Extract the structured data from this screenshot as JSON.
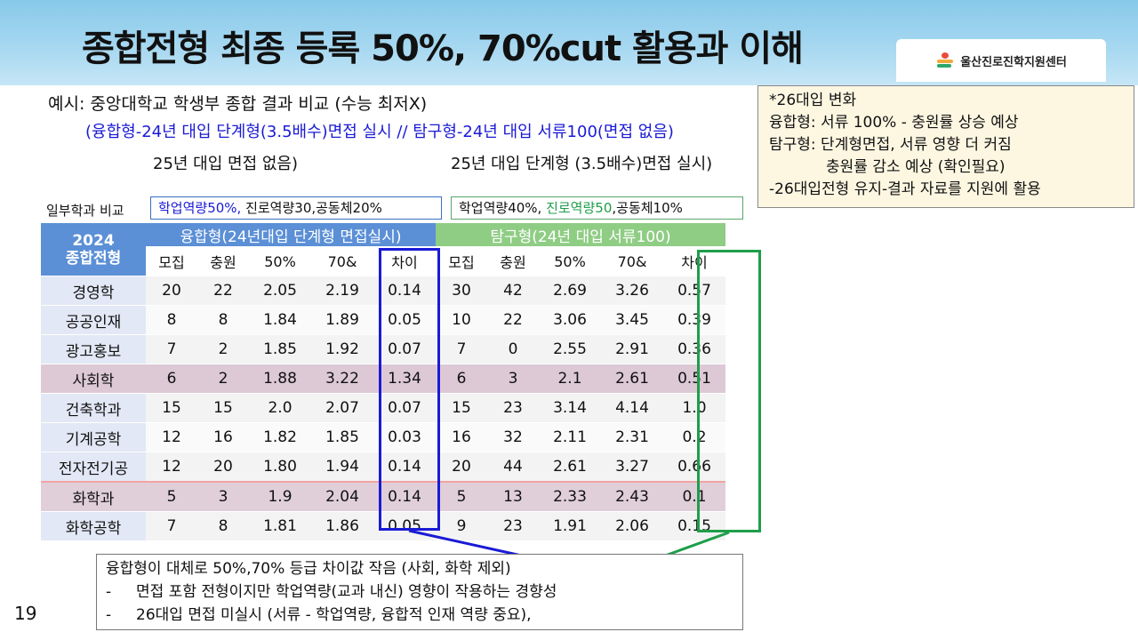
{
  "title": "종합전형 최종 등록 50%, 70%cut 활용과 이해",
  "logo": {
    "text": "울산진로진학지원센터"
  },
  "example": "예시: 중앙대학교 학생부 종합  결과 비교 (수능 최저X)",
  "subline": "(융합형-24년 대입 단계형(3.5배수)면접 실시 // 탐구형-24년 대입 서류100(면접 없음)",
  "note_left": "25년 대입 면접 없음)",
  "note_right": "25년 대입 단계형 (3.5배수)면접 실시)",
  "infobox": {
    "line1": "*26대입 변화",
    "line2": "융합형: 서류 100% - 충원률 상승 예상",
    "line3": "탐구형: 단계형면접, 서류 영향 더 커짐",
    "line4": "충원률 감소 예상 (확인필요)",
    "line5": "-26대입전형 유지-결과 자료를 지원에 활용"
  },
  "compare_label": "일부학과 비교",
  "box_a": {
    "accent": "학업역량50%,",
    "rest": " 진로역량30,공동체20%"
  },
  "box_b": {
    "lead": "학업역량40%, ",
    "accent": "진로역량50",
    "rest": ",공동체10%"
  },
  "table": {
    "corner_line1": "2024",
    "corner_line2": "종합전형",
    "group_a": "융합형(24년대입 단계형 면접실시)",
    "group_b": "탐구형(24년 대입 서류100)",
    "columns": [
      "모집",
      "충원",
      "50%",
      "70&",
      "차이",
      "모집",
      "충원",
      "50%",
      "70&",
      "차이"
    ],
    "rows": [
      {
        "dept": "경영학",
        "a": [
          "20",
          "22",
          "2.05",
          "2.19",
          "0.14"
        ],
        "b": [
          "30",
          "42",
          "2.69",
          "3.26",
          "0.57"
        ]
      },
      {
        "dept": "공공인재",
        "a": [
          "8",
          "8",
          "1.84",
          "1.89",
          "0.05"
        ],
        "b": [
          "10",
          "22",
          "3.06",
          "3.45",
          "0.39"
        ]
      },
      {
        "dept": "광고홍보",
        "a": [
          "7",
          "2",
          "1.85",
          "1.92",
          "0.07"
        ],
        "b": [
          "7",
          "0",
          "2.55",
          "2.91",
          "0.36"
        ]
      },
      {
        "dept": "사회학",
        "a": [
          "6",
          "2",
          "1.88",
          "3.22",
          "1.34"
        ],
        "b": [
          "6",
          "3",
          "2.1",
          "2.61",
          "0.51"
        ]
      },
      {
        "dept": "건축학과",
        "a": [
          "15",
          "15",
          "2.0",
          "2.07",
          "0.07"
        ],
        "b": [
          "15",
          "23",
          "3.14",
          "4.14",
          "1.0"
        ]
      },
      {
        "dept": "기계공학",
        "a": [
          "12",
          "16",
          "1.82",
          "1.85",
          "0.03"
        ],
        "b": [
          "16",
          "32",
          "2.11",
          "2.31",
          "0.2"
        ]
      },
      {
        "dept": "전자전기공",
        "a": [
          "12",
          "20",
          "1.80",
          "1.94",
          "0.14"
        ],
        "b": [
          "20",
          "44",
          "2.61",
          "3.27",
          "0.66"
        ]
      },
      {
        "dept": "화학과",
        "a": [
          "5",
          "3",
          "1.9",
          "2.04",
          "0.14"
        ],
        "b": [
          "5",
          "13",
          "2.33",
          "2.43",
          "0.1"
        ]
      },
      {
        "dept": "화학공학",
        "a": [
          "7",
          "8",
          "1.81",
          "1.86",
          "0.05"
        ],
        "b": [
          "9",
          "23",
          "1.91",
          "2.06",
          "0.15"
        ]
      }
    ]
  },
  "summary": {
    "line1": "융합형이 대체로 50%,70% 등급 차이값 작음 (사회, 화학 제외)",
    "line2_dash": "-",
    "line2": "면접 포함 전형이지만 학업역량(교과 내신) 영향이 작용하는 경향성",
    "line3_dash": "-",
    "line3": "26대입 면접 미실시 (서류 - 학업역량, 융합적 인재 역량 중요),"
  },
  "page_number": "19",
  "colors": {
    "blue_frame": "#1a1ad6",
    "green_frame": "#1e9e4a",
    "header_blue": "#5b8fd6",
    "header_green": "#8fcd84"
  }
}
